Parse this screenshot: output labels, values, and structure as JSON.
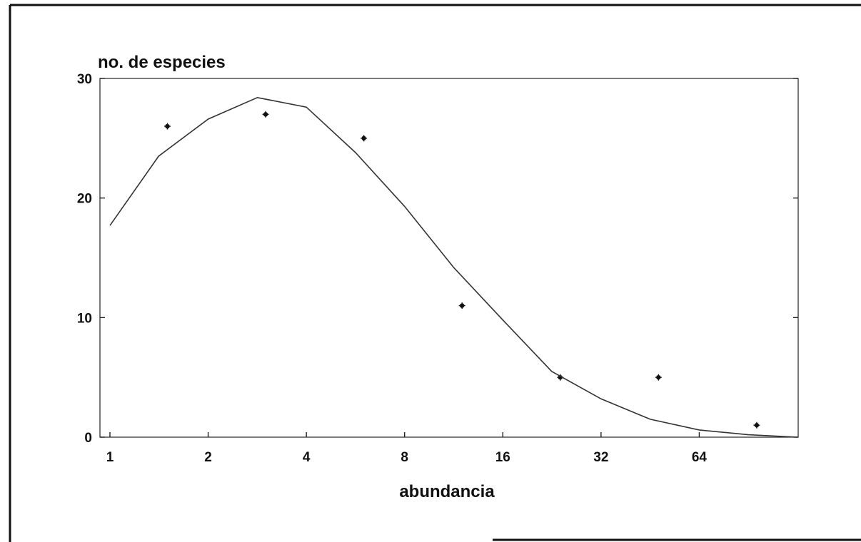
{
  "chart_data": {
    "type": "scatter",
    "ylabel": "no. de especies",
    "xlabel": "abundancia",
    "x_scale": "log2",
    "xlim": [
      1,
      128
    ],
    "ylim": [
      0,
      30
    ],
    "x_ticks": [
      1,
      2,
      4,
      8,
      16,
      32,
      64
    ],
    "x_tick_labels": [
      "1",
      "2",
      "4",
      "8",
      "16",
      "32",
      "64"
    ],
    "y_ticks": [
      0,
      10,
      20,
      30
    ],
    "y_tick_labels": [
      "0",
      "10",
      "20",
      "30"
    ],
    "grid": false,
    "series": [
      {
        "kind": "points",
        "marker": "asterisk",
        "x": [
          1.5,
          3,
          6,
          12,
          24,
          48,
          96
        ],
        "y": [
          26,
          27,
          25,
          11,
          5,
          5,
          1
        ]
      },
      {
        "kind": "line",
        "x": [
          1,
          1.41,
          2,
          2.83,
          4,
          5.66,
          8,
          11.3,
          16,
          22.6,
          32,
          45.3,
          64,
          90.5,
          128
        ],
        "y": [
          17.7,
          23.5,
          26.6,
          28.4,
          27.6,
          23.8,
          19.3,
          14.2,
          9.8,
          5.5,
          3.2,
          1.5,
          0.6,
          0.2,
          0
        ]
      }
    ],
    "colors": {
      "ink": "#111111",
      "line": "#333333",
      "background": "#ffffff"
    }
  }
}
